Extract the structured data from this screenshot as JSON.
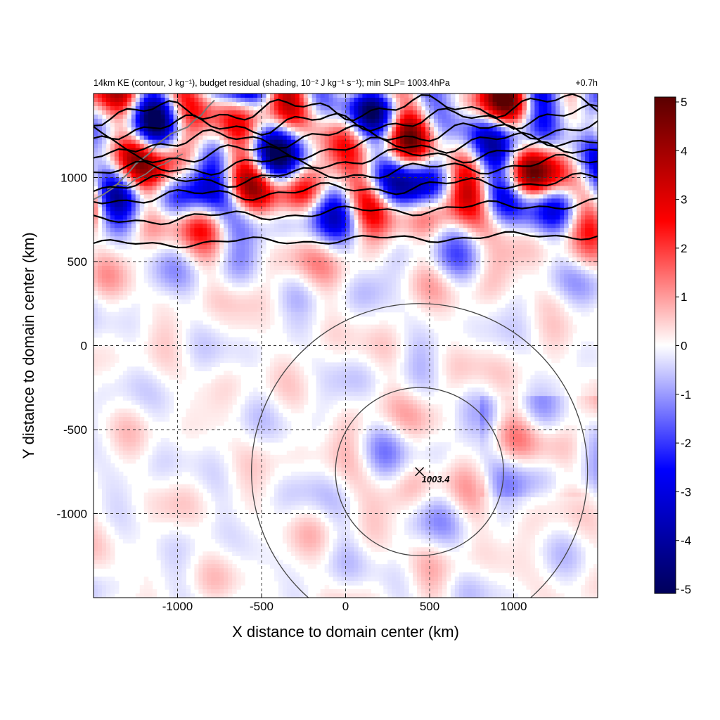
{
  "chart_data": {
    "type": "heatmap",
    "title_left": "14km KE (contour, J kg⁻¹), budget residual (shading, 10⁻² J kg⁻¹ s⁻¹); min SLP= 1003.4hPa",
    "title_right": "+0.7h",
    "xlabel": "X distance to domain center (km)",
    "ylabel": "Y distance to domain center (km)",
    "xlim": [
      -1500,
      1500
    ],
    "ylim": [
      -1500,
      1500
    ],
    "x_ticks": [
      -1000,
      -500,
      0,
      500,
      1000
    ],
    "y_ticks": [
      1000,
      500,
      0,
      -500,
      -1000
    ],
    "x_tick_labels": [
      "-1000",
      "-500",
      "0",
      "500",
      "1000"
    ],
    "y_tick_labels": [
      "1000",
      "500",
      "0",
      "-500",
      "-1000"
    ],
    "grid": true,
    "colorbar": {
      "min": -5,
      "max": 5,
      "ticks": [
        5,
        4,
        3,
        2,
        1,
        0,
        -1,
        -2,
        -3,
        -4,
        -5
      ],
      "tick_labels": [
        "5",
        "4",
        "3",
        "2",
        "1",
        "0",
        "-1",
        "-2",
        "-3",
        "-4",
        "-5"
      ],
      "colors": [
        "#00005a",
        "#0000ff",
        "#ffffff",
        "#ff0000",
        "#5a0000"
      ]
    },
    "storm_center": {
      "x": 440,
      "y": -750,
      "label": "1003.4"
    },
    "range_rings_km": [
      500,
      1000
    ],
    "ke_contours": [
      {
        "y0": 600,
        "y1": 660
      },
      {
        "y0": 740,
        "y1": 850
      },
      {
        "y0": 870,
        "y1": 990
      },
      {
        "y0": 950,
        "y1": 1100
      },
      {
        "y0": 1030,
        "y1": 1180
      },
      {
        "y0": 1110,
        "y1": 1240
      },
      {
        "y0": 1200,
        "y1": 1300
      },
      {
        "y0": 1290,
        "y1": 1370
      },
      {
        "y0": 1380,
        "y1": 1440
      }
    ]
  }
}
